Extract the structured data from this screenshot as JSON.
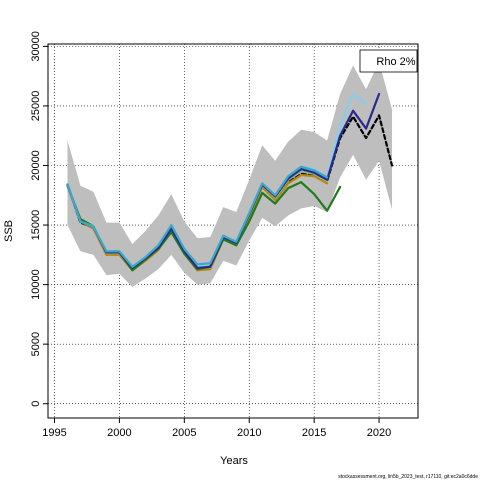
{
  "chart_data": {
    "type": "line",
    "xlabel": "Years",
    "ylabel": "SSB",
    "xlim": [
      1994.5,
      2023
    ],
    "ylim": [
      -1200,
      30200
    ],
    "x_ticks": [
      1995,
      2000,
      2005,
      2010,
      2015,
      2020
    ],
    "y_ticks": [
      0,
      5000,
      10000,
      15000,
      20000,
      25000,
      30000
    ],
    "grid": true,
    "grid_style": "dotted",
    "legend": {
      "placement": "top-right",
      "text": "Rho 2%"
    },
    "footer": "stockassessment.org, lin5b_2023_test, r17110, git:ec2a0c6dde",
    "confidence_band": {
      "color": "#bebebe",
      "x": [
        1996,
        1997,
        1998,
        1999,
        2000,
        2001,
        2002,
        2003,
        2004,
        2005,
        2006,
        2007,
        2008,
        2009,
        2010,
        2011,
        2012,
        2013,
        2014,
        2015,
        2016,
        2017,
        2018,
        2019,
        2020,
        2021
      ],
      "lower": [
        15000,
        12800,
        12500,
        10800,
        10900,
        9800,
        10500,
        11300,
        12500,
        11000,
        10000,
        10100,
        12000,
        11600,
        13700,
        15600,
        14900,
        15800,
        16400,
        16600,
        16100,
        19000,
        20900,
        18800,
        20400,
        16300
      ],
      "upper": [
        22100,
        18300,
        17800,
        15200,
        15200,
        13400,
        14500,
        15800,
        17600,
        15300,
        13900,
        14000,
        16500,
        16100,
        18800,
        21700,
        20400,
        22000,
        23000,
        22800,
        22100,
        26000,
        28400,
        26400,
        28700,
        24700
      ]
    },
    "series": [
      {
        "color": "#000000",
        "dashed": true,
        "x": [
          1996,
          1997,
          1998,
          1999,
          2000,
          2001,
          2002,
          2003,
          2004,
          2005,
          2006,
          2007,
          2008,
          2009,
          2010,
          2011,
          2012,
          2013,
          2014,
          2015,
          2016,
          2017,
          2018,
          2019,
          2020,
          2021
        ],
        "values": [
          18400,
          15200,
          14800,
          12600,
          12600,
          11300,
          12100,
          13000,
          14600,
          12700,
          11300,
          11400,
          13900,
          13400,
          15800,
          18300,
          17200,
          18600,
          19300,
          19200,
          18700,
          22300,
          24100,
          22300,
          24200,
          20000
        ]
      },
      {
        "color": "#b8860b",
        "x": [
          1996,
          1997,
          1998,
          1999,
          2000,
          2001,
          2002,
          2003,
          2004,
          2005,
          2006,
          2007,
          2008,
          2009,
          2010,
          2011,
          2012,
          2013,
          2014,
          2015,
          2016
        ],
        "values": [
          18300,
          15300,
          14700,
          12500,
          12500,
          11200,
          12000,
          12900,
          14500,
          12600,
          11200,
          11300,
          13800,
          13300,
          15700,
          18200,
          17100,
          18500,
          19200,
          19100,
          18500
        ]
      },
      {
        "color": "#8fbc8f",
        "x": [
          1996,
          1997,
          1998,
          1999,
          2000,
          2001,
          2002,
          2003,
          2004,
          2005,
          2006,
          2007,
          2008,
          2009,
          2010,
          2011,
          2012,
          2013,
          2014,
          2015,
          2016
        ],
        "values": [
          18350,
          15400,
          14850,
          12650,
          12650,
          11350,
          12150,
          13050,
          14700,
          12800,
          11350,
          11450,
          14000,
          13450,
          15900,
          18400,
          17300,
          18800,
          19500,
          19300,
          18700
        ]
      },
      {
        "color": "#1e7b1e",
        "x": [
          1996,
          1997,
          1998,
          1999,
          2000,
          2001,
          2002,
          2003,
          2004,
          2005,
          2006,
          2007,
          2008,
          2009,
          2010,
          2011,
          2012,
          2013,
          2014,
          2015,
          2016,
          2017
        ],
        "values": [
          18300,
          15500,
          14900,
          12700,
          12700,
          11200,
          12100,
          13000,
          14400,
          12600,
          11300,
          11500,
          13800,
          13300,
          15300,
          17700,
          16800,
          18100,
          18600,
          17600,
          16200,
          18200
        ]
      },
      {
        "color": "#87ceeb",
        "x": [
          1996,
          1997,
          1998,
          1999,
          2000,
          2001,
          2002,
          2003,
          2004,
          2005,
          2006,
          2007,
          2008,
          2009,
          2010,
          2011,
          2012,
          2013,
          2014,
          2015,
          2016,
          2017,
          2018,
          2019
        ],
        "values": [
          18400,
          15300,
          14900,
          12800,
          12800,
          11500,
          12300,
          13300,
          14900,
          12900,
          11600,
          11700,
          14100,
          13600,
          16000,
          18500,
          17500,
          19000,
          19900,
          19700,
          19000,
          23300,
          26000,
          25200
        ]
      },
      {
        "color": "#2a2a8c",
        "x": [
          1996,
          1997,
          1998,
          1999,
          2000,
          2001,
          2002,
          2003,
          2004,
          2005,
          2006,
          2007,
          2008,
          2009,
          2010,
          2011,
          2012,
          2013,
          2014,
          2015,
          2016,
          2017,
          2018,
          2019,
          2020
        ],
        "values": [
          18400,
          15300,
          14850,
          12700,
          12700,
          11400,
          12200,
          13100,
          14700,
          12800,
          11400,
          11500,
          14000,
          13500,
          15900,
          18400,
          17400,
          18900,
          19700,
          19400,
          18800,
          22500,
          24600,
          23100,
          26000
        ]
      },
      {
        "color": "#3fa8c8",
        "x": [
          1996,
          1997,
          1998,
          1999,
          2000,
          2001,
          2002,
          2003,
          2004,
          2005,
          2006,
          2007,
          2008,
          2009,
          2010,
          2011,
          2012,
          2013,
          2014,
          2015,
          2016
        ],
        "values": [
          18400,
          15300,
          14850,
          12800,
          12800,
          11500,
          12300,
          13300,
          15000,
          13000,
          11700,
          11800,
          14100,
          13600,
          16000,
          18500,
          17500,
          19100,
          19900,
          19600,
          19000
        ]
      }
    ]
  }
}
